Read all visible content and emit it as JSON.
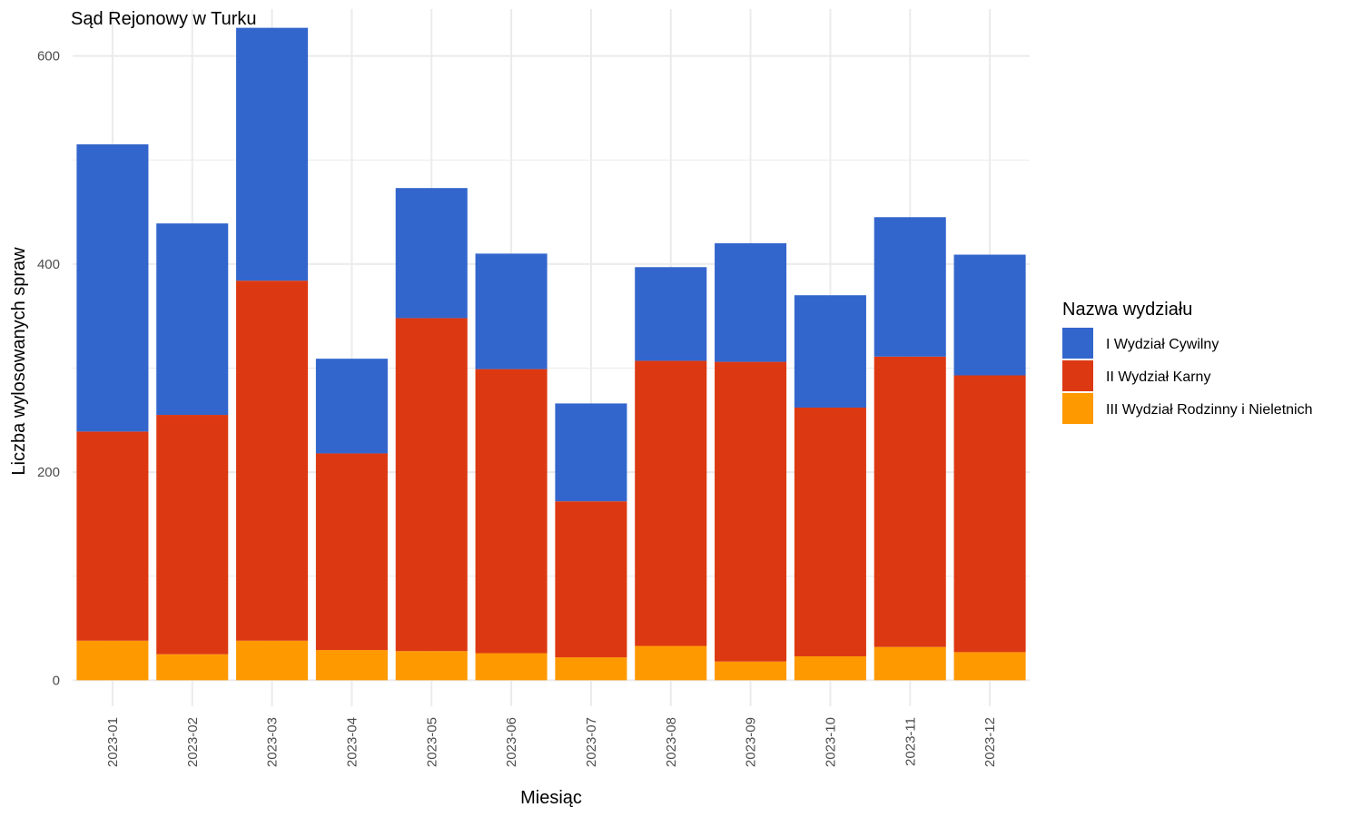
{
  "chart_data": {
    "type": "bar",
    "stacked": true,
    "title": "Sąd Rejonowy w Turku",
    "xlabel": "Miesiąc",
    "ylabel": "Liczba wylosowanych spraw",
    "ylim": [
      -25,
      645
    ],
    "y_ticks": [
      0,
      200,
      400,
      600
    ],
    "grid": true,
    "legend": {
      "title": "Nazwa wydziału",
      "position": "right"
    },
    "categories": [
      "2023-01",
      "2023-02",
      "2023-03",
      "2023-04",
      "2023-05",
      "2023-06",
      "2023-07",
      "2023-08",
      "2023-09",
      "2023-10",
      "2023-11",
      "2023-12"
    ],
    "series": [
      {
        "name": "III Wydział Rodzinny i Nieletnich",
        "color": "#FF9900",
        "values": [
          38,
          25,
          38,
          29,
          28,
          26,
          22,
          33,
          18,
          23,
          32,
          27
        ]
      },
      {
        "name": "II Wydział Karny",
        "color": "#DC3912",
        "values": [
          201,
          230,
          346,
          189,
          320,
          273,
          150,
          274,
          288,
          239,
          279,
          266
        ]
      },
      {
        "name": "I Wydział Cywilny",
        "color": "#3366CC",
        "values": [
          276,
          184,
          243,
          91,
          125,
          111,
          94,
          90,
          114,
          108,
          134,
          116
        ]
      }
    ],
    "legend_order": [
      "I Wydział Cywilny",
      "II Wydział Karny",
      "III Wydział Rodzinny i Nieletnich"
    ]
  }
}
